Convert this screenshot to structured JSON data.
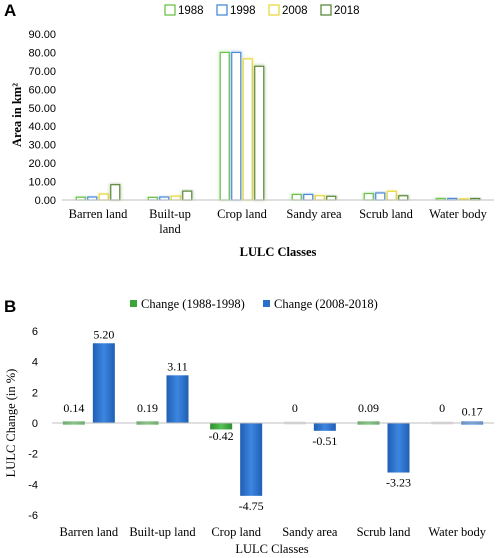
{
  "chart_data": [
    {
      "panel": "A",
      "type": "bar",
      "categories": [
        "Barren land",
        "Built-up land",
        "Crop land",
        "Sandy area",
        "Scrub land",
        "Water body"
      ],
      "series": [
        {
          "name": "1988",
          "values": [
            1.5,
            1.4,
            80.0,
            3.0,
            3.5,
            0.8
          ]
        },
        {
          "name": "1998",
          "values": [
            1.6,
            1.6,
            80.0,
            3.0,
            3.8,
            0.8
          ]
        },
        {
          "name": "2008",
          "values": [
            3.2,
            2.1,
            76.5,
            2.3,
            4.7,
            0.6
          ]
        },
        {
          "name": "2018",
          "values": [
            8.3,
            4.8,
            72.5,
            2.0,
            2.3,
            0.8
          ]
        }
      ],
      "colors": [
        "#6cc24a",
        "#4a8ad8",
        "#e8d840",
        "#5c8a3c"
      ],
      "xlabel": "LULC Classes",
      "ylabel": "Area in km²",
      "ylim": [
        0,
        90
      ],
      "yticks": [
        "0.00",
        "10.00",
        "20.00",
        "30.00",
        "40.00",
        "50.00",
        "60.00",
        "70.00",
        "80.00",
        "90.00"
      ],
      "legend_position": "top",
      "grid": false
    },
    {
      "panel": "B",
      "type": "bar",
      "categories": [
        "Barren land",
        "Built-up land",
        "Crop land",
        "Sandy area",
        "Scrub land",
        "Water body"
      ],
      "series": [
        {
          "name": "Change (1988-1998)",
          "values": [
            0.14,
            0.19,
            -0.42,
            0,
            0.09,
            0
          ],
          "labels": [
            "0.14",
            "0.19",
            "-0.42",
            "0",
            "0.09",
            "0"
          ]
        },
        {
          "name": "Change (2008-2018)",
          "values": [
            5.2,
            3.11,
            -4.75,
            -0.51,
            -3.23,
            0.17
          ],
          "labels": [
            "5.20",
            "3.11",
            "-4.75",
            "-0.51",
            "-3.23",
            "0.17"
          ]
        }
      ],
      "colors": [
        "#3aa63a",
        "#2a6fc8"
      ],
      "xlabel": "LULC Classes",
      "ylabel": "LULC Change (in %)",
      "ylim": [
        -6,
        6
      ],
      "yticks": [
        "6",
        "4",
        "2",
        "0",
        "-2",
        "-4",
        "-6"
      ],
      "legend_position": "top",
      "grid": false
    }
  ]
}
